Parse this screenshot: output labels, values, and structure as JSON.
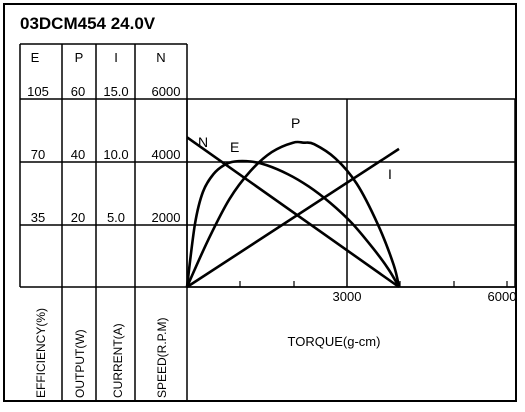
{
  "title": "03DCM454  24.0V",
  "axis_headers": {
    "efficiency": "E",
    "output": "P",
    "current": "I",
    "speed": "N"
  },
  "axis_names": {
    "efficiency": "EFFICIENCY(%)",
    "output": "OUTPUT(W)",
    "current": "CURRENT(A)",
    "speed": "SPEED(R.P.M)",
    "torque": "TORQUE(g-cm)"
  },
  "y_ticks": [
    {
      "efficiency": "105",
      "output": "60",
      "current": "15.0",
      "speed": "6000"
    },
    {
      "efficiency": "70",
      "output": "40",
      "current": "10.0",
      "speed": "4000"
    },
    {
      "efficiency": "35",
      "output": "20",
      "current": "5.0",
      "speed": "2000"
    }
  ],
  "x_ticks": [
    "3000",
    "6000"
  ],
  "curve_labels": {
    "speed": "N",
    "efficiency": "E",
    "output": "P",
    "current": "I"
  },
  "chart_data": {
    "type": "line",
    "title": "03DCM454  24.0V",
    "xlabel": "TORQUE(g-cm)",
    "xlim": [
      0,
      6000
    ],
    "x_ticks": [
      3000,
      6000
    ],
    "y_axes": [
      {
        "name": "EFFICIENCY(%)",
        "header": "E",
        "range": [
          0,
          140
        ],
        "ticks": [
          35,
          70,
          105
        ]
      },
      {
        "name": "OUTPUT(W)",
        "header": "P",
        "range": [
          0,
          80
        ],
        "ticks": [
          20,
          40,
          60
        ]
      },
      {
        "name": "CURRENT(A)",
        "header": "I",
        "range": [
          0,
          20
        ],
        "ticks": [
          5.0,
          10.0,
          15.0
        ]
      },
      {
        "name": "SPEED(R.P.M)",
        "header": "N",
        "range": [
          0,
          8000
        ],
        "ticks": [
          2000,
          4000,
          6000
        ]
      }
    ],
    "grid": true,
    "series": [
      {
        "name": "N",
        "axis": "SPEED(R.P.M)",
        "x": [
          0,
          4000
        ],
        "y": [
          4770,
          0
        ]
      },
      {
        "name": "I",
        "axis": "CURRENT(A)",
        "x": [
          0,
          4000
        ],
        "y": [
          0,
          11.0
        ]
      },
      {
        "name": "E",
        "axis": "EFFICIENCY(%)",
        "x": [
          0,
          150,
          300,
          500,
          700,
          900,
          1200,
          1500,
          1900,
          2300,
          2700,
          3100,
          3500,
          3800,
          4000
        ],
        "y": [
          0,
          35,
          53,
          63,
          68,
          70,
          70,
          68,
          63,
          56,
          47,
          36,
          22,
          10,
          0
        ]
      },
      {
        "name": "P",
        "axis": "OUTPUT(W)",
        "x": [
          0,
          400,
          800,
          1200,
          1600,
          2000,
          2200,
          2400,
          2800,
          3200,
          3600,
          3900,
          4000
        ],
        "y": [
          0,
          15,
          28,
          37,
          43,
          46,
          46,
          45.5,
          41,
          33,
          20,
          7,
          0
        ]
      }
    ]
  }
}
